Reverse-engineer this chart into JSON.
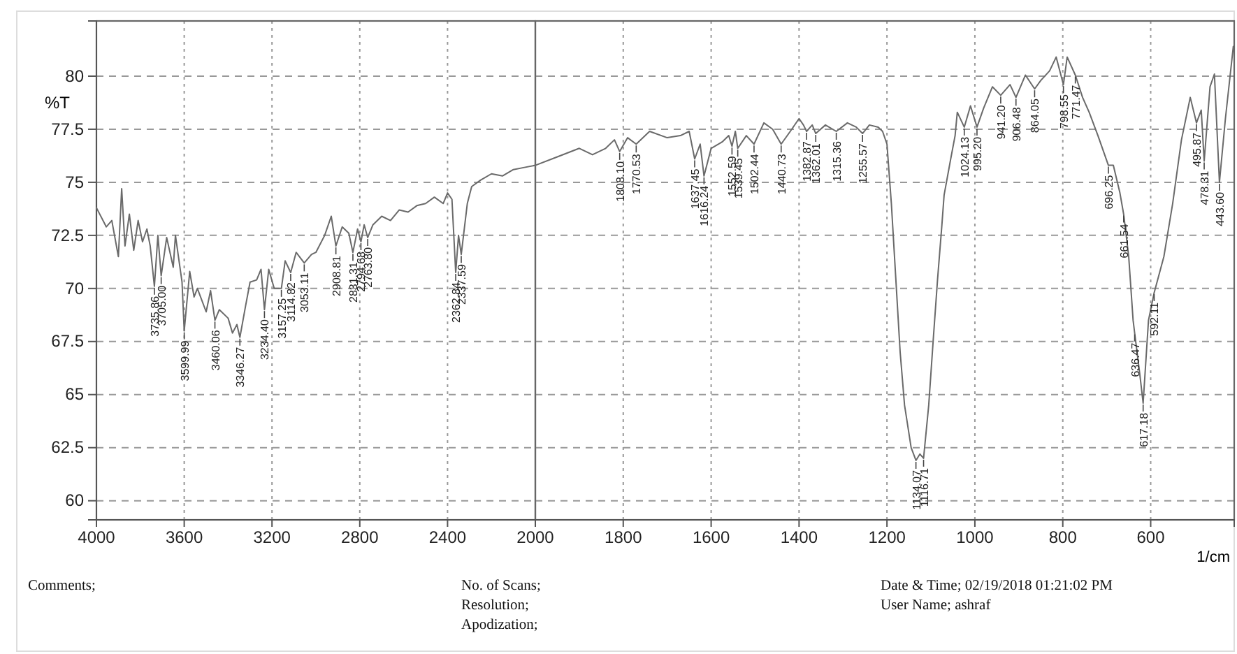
{
  "chart_data": [
    {
      "type": "line",
      "ylabel": "%T",
      "xlim": [
        4000,
        2000
      ],
      "ylim": [
        59.1,
        82.6
      ],
      "xticks": [
        4000,
        3600,
        3200,
        2800,
        2400,
        2000
      ],
      "yticks": [
        60,
        62.5,
        65,
        67.5,
        70,
        72.5,
        75,
        77.5,
        80
      ],
      "grid": true,
      "line_style": "solid",
      "series": [
        {
          "color": "#6a6a6a",
          "x": [
            4000,
            3955,
            3930,
            3900,
            3885,
            3870,
            3850,
            3830,
            3810,
            3790,
            3770,
            3755,
            3735.86,
            3720,
            3705.0,
            3680,
            3650,
            3640,
            3610,
            3599.99,
            3575,
            3555,
            3540,
            3500,
            3480,
            3460.06,
            3440,
            3400,
            3380,
            3360,
            3346.27,
            3320,
            3300,
            3270,
            3250,
            3234.4,
            3215,
            3190,
            3157.25,
            3140,
            3114.82,
            3090,
            3053.11,
            3020,
            3000,
            2960,
            2930,
            2908.81,
            2880,
            2850,
            2831.31,
            2810,
            2794.68,
            2780,
            2763.8,
            2740,
            2700,
            2660,
            2620,
            2580,
            2540,
            2500,
            2460,
            2420,
            2400,
            2380,
            2362.84,
            2350,
            2337.59,
            2310,
            2290,
            2250,
            2200,
            2150,
            2100,
            2050,
            2000
          ],
          "values": [
            73.8,
            72.9,
            73.2,
            71.5,
            74.7,
            72.0,
            73.5,
            71.8,
            73.2,
            72.2,
            72.8,
            72.0,
            70.1,
            72.5,
            70.6,
            72.4,
            71.0,
            72.5,
            70.3,
            68.0,
            70.8,
            69.6,
            70.0,
            68.9,
            69.9,
            68.5,
            69.0,
            68.6,
            67.9,
            68.3,
            67.7,
            69.2,
            70.3,
            70.4,
            70.9,
            69.0,
            70.9,
            70.0,
            70.0,
            71.3,
            70.75,
            71.7,
            71.2,
            71.6,
            71.7,
            72.5,
            73.4,
            72.0,
            72.9,
            72.6,
            71.7,
            72.8,
            72.2,
            73.0,
            72.4,
            73.0,
            73.4,
            73.2,
            73.7,
            73.6,
            73.9,
            74.0,
            74.3,
            74.0,
            74.5,
            74.2,
            70.75,
            72.5,
            71.6,
            74.0,
            74.8,
            75.1,
            75.4,
            75.3,
            75.6,
            75.7,
            75.8
          ]
        }
      ],
      "annotations": [
        {
          "text": "3735.86",
          "x": 3735.86,
          "y": 70.1
        },
        {
          "text": "3705.00",
          "x": 3705.0,
          "y": 70.6
        },
        {
          "text": "3599.99",
          "x": 3599.99,
          "y": 68.0
        },
        {
          "text": "3460.06",
          "x": 3460.06,
          "y": 68.5
        },
        {
          "text": "3346.27",
          "x": 3346.27,
          "y": 67.7
        },
        {
          "text": "3234.40",
          "x": 3234.4,
          "y": 69.0
        },
        {
          "text": "3157.25",
          "x": 3157.25,
          "y": 70.0
        },
        {
          "text": "3114.82",
          "x": 3114.82,
          "y": 70.75
        },
        {
          "text": "3053.11",
          "x": 3053.11,
          "y": 71.2
        },
        {
          "text": "2908.81",
          "x": 2908.81,
          "y": 72.0
        },
        {
          "text": "2831.31",
          "x": 2831.31,
          "y": 71.7
        },
        {
          "text": "2794.68",
          "x": 2794.68,
          "y": 72.2
        },
        {
          "text": "2763.80",
          "x": 2763.8,
          "y": 72.4
        },
        {
          "text": "2362.84",
          "x": 2362.84,
          "y": 70.75
        },
        {
          "text": "2337.59",
          "x": 2337.59,
          "y": 71.6
        },
        "Comments;",
        "No. of Scans;",
        "Resolution;",
        "Apodization;",
        "Date & Time; 02/19/2018 01:21:02 PM",
        "User Name;   ashraf"
      ]
    },
    {
      "type": "line",
      "xlabel": "1/cm",
      "xlim": [
        2000,
        410
      ],
      "ylim": [
        59.1,
        82.6
      ],
      "xticks": [
        1800,
        1600,
        1400,
        1200,
        1000,
        800,
        600
      ],
      "yticks": [
        60,
        62.5,
        65,
        67.5,
        70,
        72.5,
        75,
        77.5,
        80
      ],
      "tick_labels": "x",
      "grid": true,
      "line_style": "solid",
      "series": [
        {
          "color": "#6a6a6a",
          "x": [
            2000,
            1950,
            1900,
            1870,
            1840,
            1820,
            1808.1,
            1790,
            1770.53,
            1740,
            1700,
            1670,
            1650,
            1637.45,
            1625,
            1616.24,
            1600,
            1575,
            1560,
            1552.59,
            1545,
            1539.45,
            1520,
            1502.44,
            1480,
            1460,
            1440.73,
            1420,
            1400,
            1390,
            1382.87,
            1370,
            1362.01,
            1340,
            1315.36,
            1290,
            1270,
            1255.57,
            1240,
            1220,
            1210,
            1200,
            1190,
            1180,
            1170,
            1160,
            1145,
            1134.07,
            1125,
            1116.71,
            1105,
            1095,
            1085,
            1075,
            1070,
            1055,
            1045,
            1040,
            1024.13,
            1010,
            995.2,
            980,
            960,
            941.2,
            920,
            906.48,
            885,
            864.05,
            850,
            830,
            815,
            798.55,
            790,
            771.47,
            755,
            740,
            720,
            696.25,
            685,
            670,
            661.54,
            650,
            640,
            636.47,
            625,
            617.18,
            605,
            592.11,
            570,
            550,
            530,
            510,
            495.87,
            485,
            478.31,
            465,
            455,
            443.6,
            430,
            412
          ],
          "values": [
            75.8,
            76.2,
            76.6,
            76.3,
            76.6,
            77.0,
            76.45,
            77.1,
            76.8,
            77.4,
            77.1,
            77.2,
            77.4,
            76.1,
            76.8,
            75.3,
            76.6,
            76.9,
            77.2,
            76.7,
            77.4,
            76.6,
            77.2,
            76.8,
            77.8,
            77.5,
            76.8,
            77.4,
            78.0,
            77.7,
            77.4,
            77.7,
            77.3,
            77.7,
            77.4,
            77.8,
            77.6,
            77.3,
            77.7,
            77.6,
            77.4,
            76.8,
            74.0,
            70.5,
            67.0,
            64.5,
            62.5,
            61.9,
            62.2,
            62.0,
            64.5,
            67.5,
            70.4,
            73.0,
            74.4,
            76.1,
            77.2,
            78.3,
            77.6,
            78.6,
            77.6,
            78.5,
            79.5,
            79.1,
            79.6,
            79.0,
            80.05,
            79.4,
            79.8,
            80.25,
            80.9,
            79.6,
            80.9,
            80.05,
            79.0,
            78.3,
            77.2,
            75.8,
            75.8,
            74.5,
            73.5,
            71.5,
            68.5,
            67.9,
            66.0,
            64.6,
            68.5,
            69.8,
            71.5,
            74.0,
            77.0,
            79.0,
            77.8,
            78.4,
            76.0,
            79.5,
            80.1,
            75.0,
            78.0,
            81.4
          ]
        }
      ],
      "annotations": [
        {
          "text": "1808.10",
          "x": 1808.1,
          "y": 76.45
        },
        {
          "text": "1770.53",
          "x": 1770.53,
          "y": 76.8
        },
        {
          "text": "1637.45",
          "x": 1637.45,
          "y": 76.1
        },
        {
          "text": "1616.24",
          "x": 1616.24,
          "y": 75.3
        },
        {
          "text": "1552.59",
          "x": 1552.59,
          "y": 76.7
        },
        {
          "text": "1539.45",
          "x": 1539.45,
          "y": 76.6
        },
        {
          "text": "1502.44",
          "x": 1502.44,
          "y": 76.8
        },
        {
          "text": "1440.73",
          "x": 1440.73,
          "y": 76.8
        },
        {
          "text": "1382.87",
          "x": 1382.87,
          "y": 77.4
        },
        {
          "text": "1362.01",
          "x": 1362.01,
          "y": 77.3
        },
        {
          "text": "1315.36",
          "x": 1315.36,
          "y": 77.4
        },
        {
          "text": "1255.57",
          "x": 1255.57,
          "y": 77.3
        },
        {
          "text": "1134.07",
          "x": 1134.07,
          "y": 61.9
        },
        {
          "text": "1116.71",
          "x": 1116.71,
          "y": 62.0
        },
        {
          "text": "1024.13",
          "x": 1024.13,
          "y": 77.6
        },
        {
          "text": "995.20",
          "x": 995.2,
          "y": 77.6
        },
        {
          "text": "941.20",
          "x": 941.2,
          "y": 79.1
        },
        {
          "text": "906.48",
          "x": 906.48,
          "y": 79.0
        },
        {
          "text": "864.05",
          "x": 864.05,
          "y": 79.4
        },
        {
          "text": "798.55",
          "x": 798.55,
          "y": 79.6
        },
        {
          "text": "771.47",
          "x": 771.47,
          "y": 80.05
        },
        {
          "text": "696.25",
          "x": 696.25,
          "y": 75.8
        },
        {
          "text": "661.54",
          "x": 661.54,
          "y": 73.5
        },
        {
          "text": "636.47",
          "x": 636.47,
          "y": 67.9
        },
        {
          "text": "617.18",
          "x": 617.18,
          "y": 64.6
        },
        {
          "text": "592.11",
          "x": 592.11,
          "y": 69.8
        },
        {
          "text": "495.87",
          "x": 495.87,
          "y": 77.8
        },
        {
          "text": "478.31",
          "x": 478.31,
          "y": 76.0
        },
        {
          "text": "443.60",
          "x": 443.6,
          "y": 75.0
        }
      ]
    }
  ]
}
